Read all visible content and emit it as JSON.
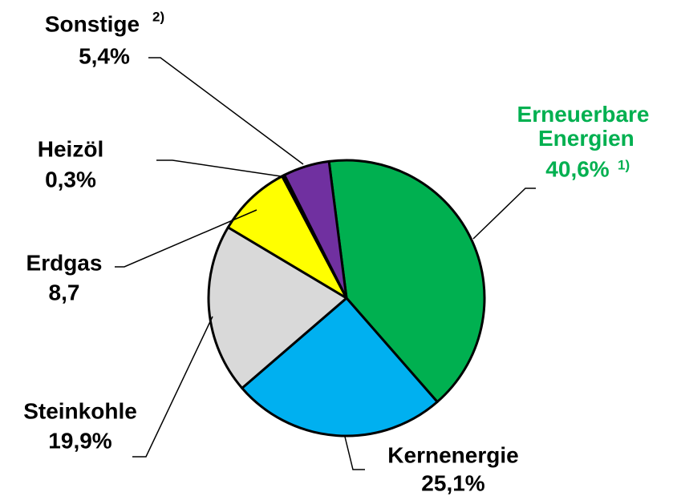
{
  "chart_data": {
    "type": "pie",
    "categories": [
      "Erneuerbare Energien",
      "Kernenergie",
      "Steinkohle",
      "Erdgas",
      "Heizöl",
      "Sonstige"
    ],
    "values": [
      40.6,
      25.1,
      19.9,
      8.7,
      0.3,
      5.4
    ],
    "value_labels": [
      "40,6%",
      "25,1%",
      "19,9%",
      "8,7",
      "0,3%",
      "5,4%"
    ],
    "notes": [
      "1)",
      null,
      null,
      null,
      null,
      "2)"
    ],
    "colors": [
      "#00b050",
      "#00b0f0",
      "#d9d9d9",
      "#ffff00",
      "#000000",
      "#7030a0"
    ]
  }
}
